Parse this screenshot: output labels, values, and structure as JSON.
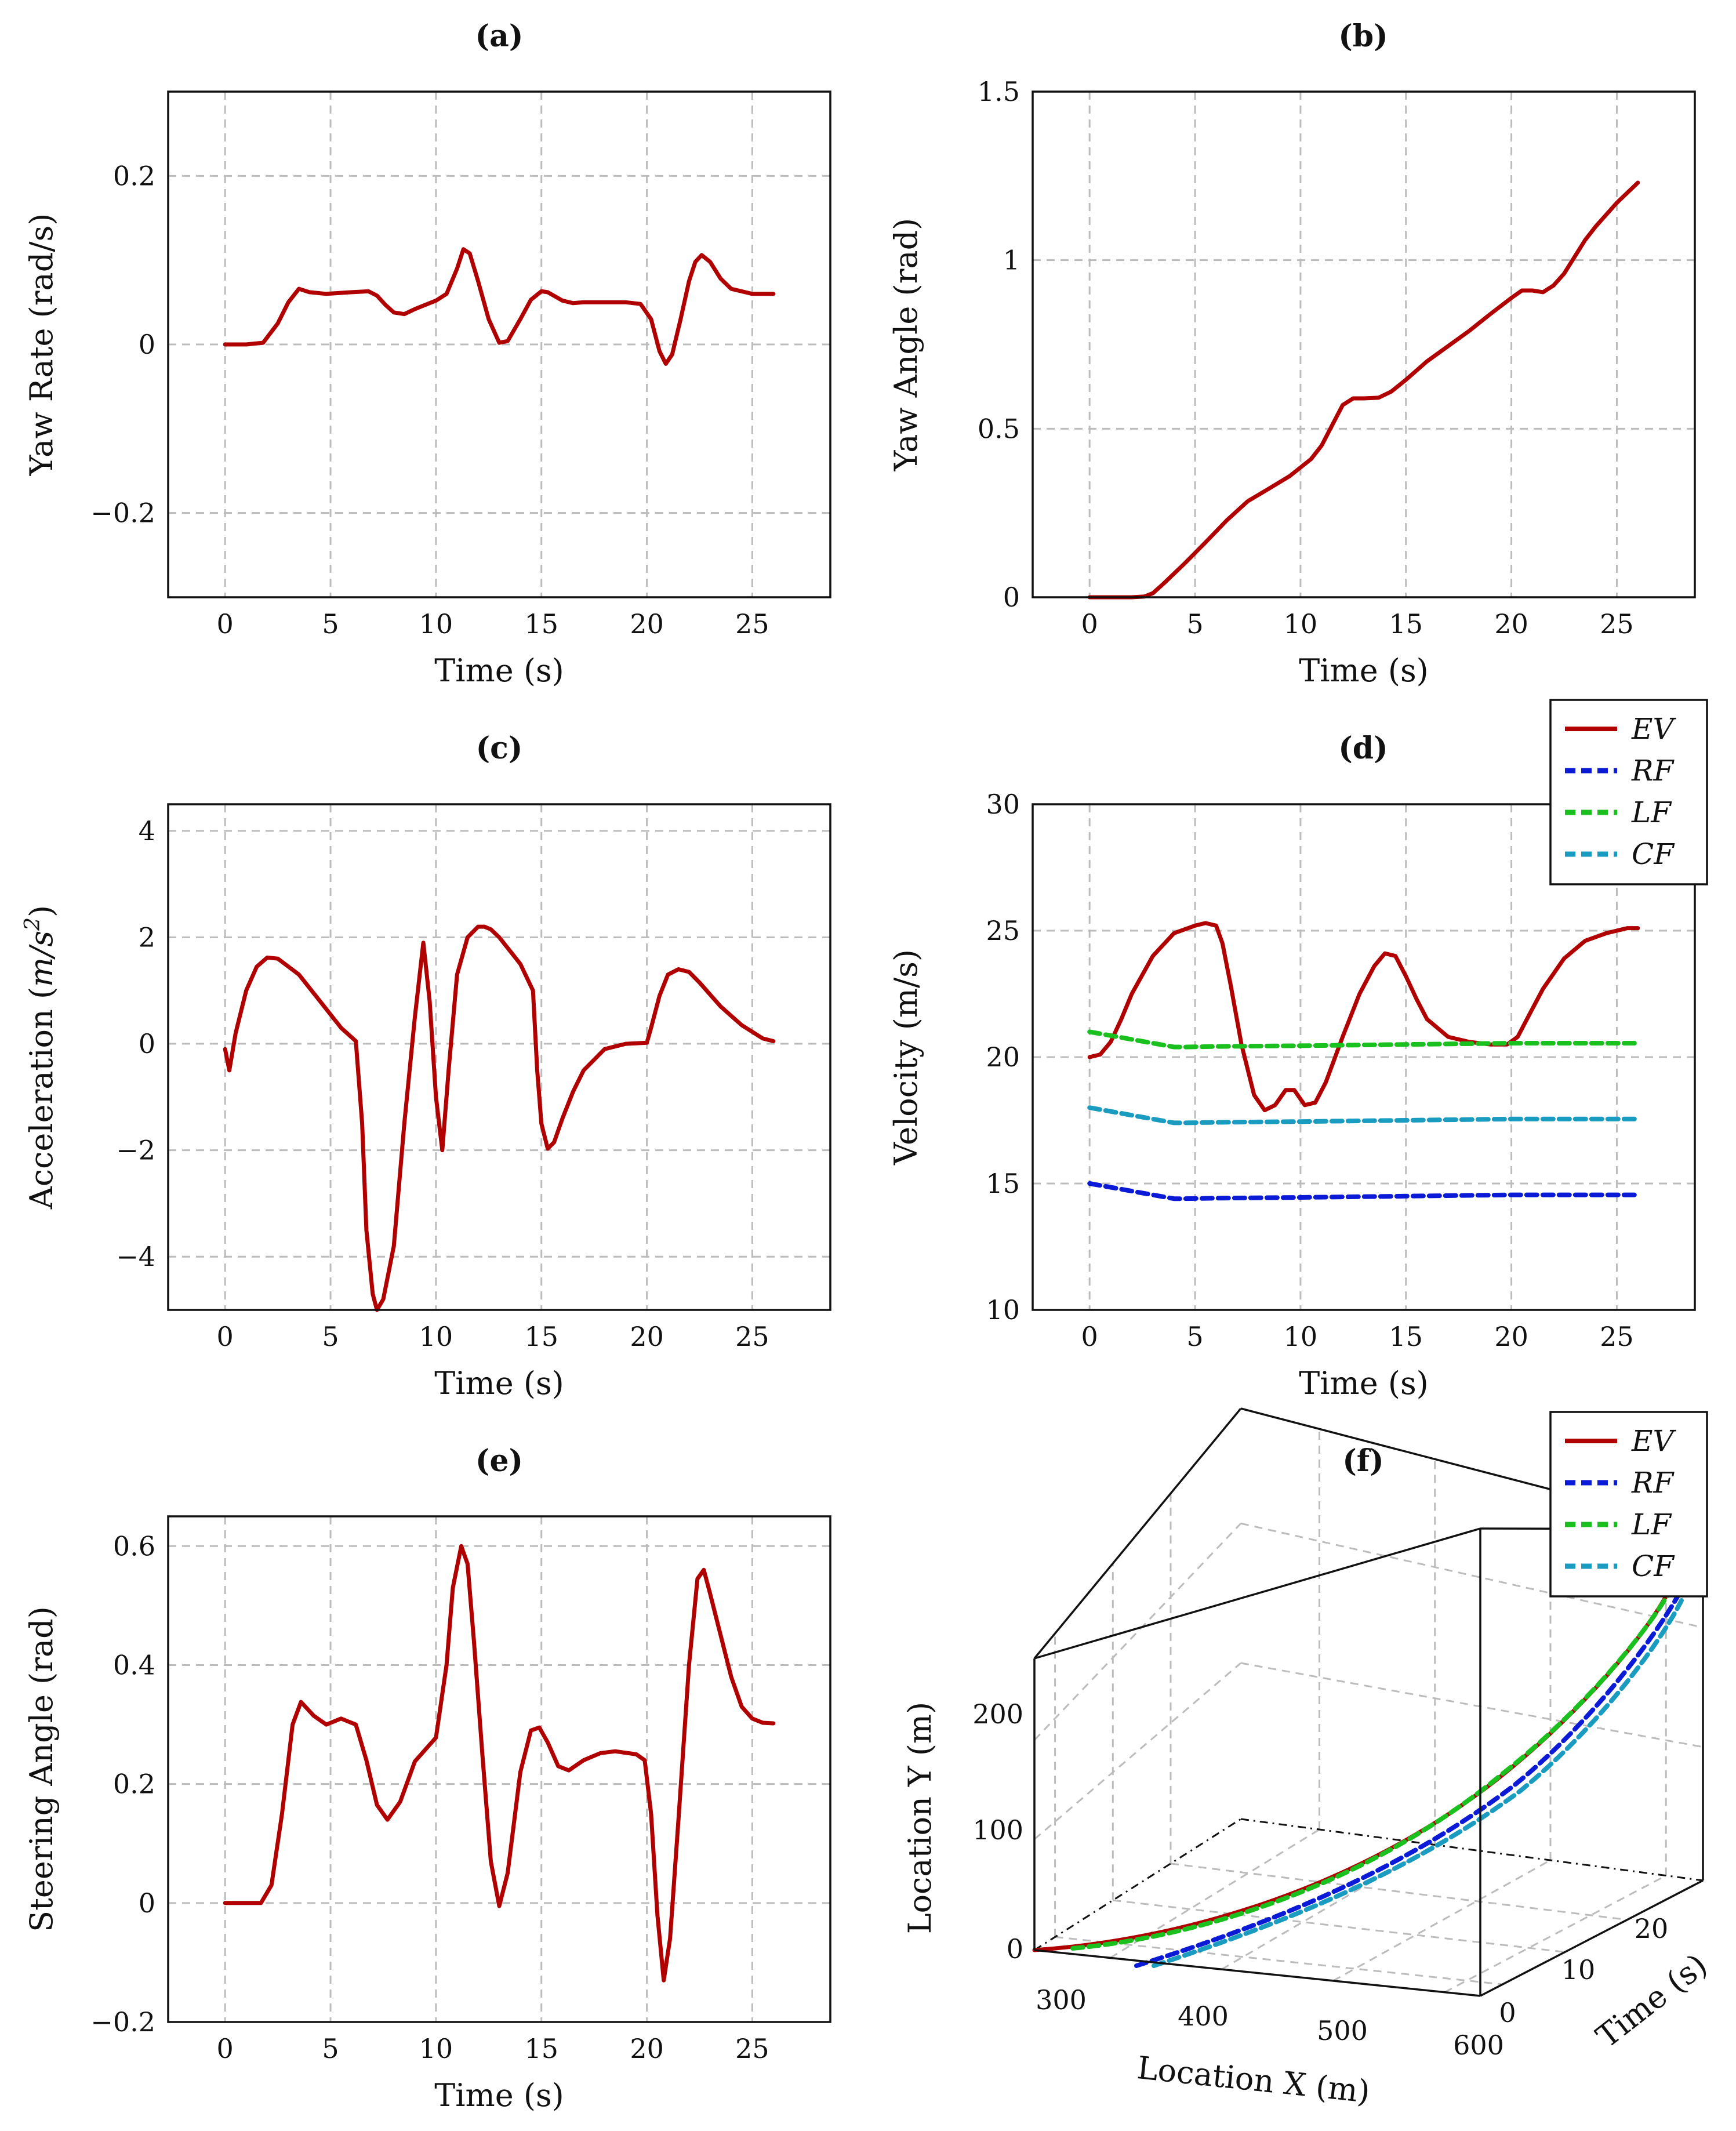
{
  "colors": {
    "EV": "#b00000",
    "RF": "#0a1ad6",
    "LF": "#19c01e",
    "CF": "#1a9bc0"
  },
  "chart_data": [
    {
      "id": "a",
      "type": "line",
      "title": "(a)",
      "xlabel": "Time (s)",
      "ylabel": "Yaw Rate (rad/s)",
      "xlim": [
        -2.7,
        28.7
      ],
      "ylim": [
        -0.3,
        0.3
      ],
      "xticks": [
        0,
        5,
        10,
        15,
        20,
        25
      ],
      "yticks": [
        {
          "v": -0.2,
          "t": "−0.2"
        },
        {
          "v": 0,
          "t": "0"
        },
        {
          "v": 0.2,
          "t": "0.2"
        }
      ],
      "series": [
        {
          "name": "EV",
          "color": "EV",
          "dash": false,
          "x": [
            0,
            1,
            1.8,
            2.5,
            3.0,
            3.5,
            4.0,
            4.8,
            6.0,
            6.8,
            7.2,
            7.6,
            8.0,
            8.5,
            9.0,
            10.0,
            10.5,
            11.0,
            11.3,
            11.6,
            12.0,
            12.5,
            13.0,
            13.4,
            14.0,
            14.5,
            15.0,
            15.3,
            16.0,
            16.5,
            17.0,
            18.0,
            19.0,
            19.7,
            20.2,
            20.6,
            20.9,
            21.2,
            21.6,
            22.0,
            22.3,
            22.6,
            23.0,
            23.5,
            24.0,
            25.0,
            26.0
          ],
          "y": [
            0,
            0,
            0.002,
            0.025,
            0.05,
            0.066,
            0.062,
            0.06,
            0.062,
            0.063,
            0.058,
            0.047,
            0.038,
            0.036,
            0.042,
            0.052,
            0.06,
            0.09,
            0.113,
            0.108,
            0.075,
            0.03,
            0.002,
            0.004,
            0.03,
            0.053,
            0.063,
            0.062,
            0.052,
            0.049,
            0.05,
            0.05,
            0.05,
            0.048,
            0.03,
            -0.008,
            -0.023,
            -0.012,
            0.03,
            0.075,
            0.098,
            0.106,
            0.098,
            0.078,
            0.066,
            0.06,
            0.06
          ]
        }
      ]
    },
    {
      "id": "b",
      "type": "line",
      "title": "(b)",
      "xlabel": "Time (s)",
      "ylabel": "Yaw Angle (rad)",
      "xlim": [
        -2.7,
        28.7
      ],
      "ylim": [
        0,
        1.5
      ],
      "xticks": [
        0,
        5,
        10,
        15,
        20,
        25
      ],
      "yticks": [
        {
          "v": 0,
          "t": "0"
        },
        {
          "v": 0.5,
          "t": "0.5"
        },
        {
          "v": 1,
          "t": "1"
        },
        {
          "v": 1.5,
          "t": "1.5"
        }
      ],
      "series": [
        {
          "name": "EV",
          "color": "EV",
          "dash": false,
          "x": [
            0,
            2.0,
            2.6,
            3.0,
            3.5,
            4.5,
            5.5,
            6.5,
            7.5,
            8.5,
            9.5,
            10.5,
            11.0,
            11.5,
            12.0,
            12.5,
            13.0,
            13.7,
            14.3,
            15.0,
            16.0,
            17.0,
            18.0,
            19.0,
            20.0,
            20.5,
            21.0,
            21.5,
            22.0,
            22.5,
            23.0,
            23.5,
            24.0,
            25.0,
            26.0
          ],
          "y": [
            0,
            0,
            0.002,
            0.012,
            0.04,
            0.1,
            0.163,
            0.228,
            0.285,
            0.322,
            0.36,
            0.41,
            0.45,
            0.51,
            0.57,
            0.59,
            0.59,
            0.592,
            0.61,
            0.645,
            0.7,
            0.745,
            0.79,
            0.84,
            0.888,
            0.91,
            0.91,
            0.905,
            0.925,
            0.96,
            1.01,
            1.06,
            1.1,
            1.17,
            1.23
          ]
        }
      ]
    },
    {
      "id": "c",
      "type": "line",
      "title": "(c)",
      "xlabel": "Time (s)",
      "ylabel": "Acceleration (m/s²)",
      "ylabel_parts": [
        "Acceleration (",
        "m/s",
        "2",
        ")"
      ],
      "xlim": [
        -2.7,
        28.7
      ],
      "ylim": [
        -5,
        4.5
      ],
      "xticks": [
        0,
        5,
        10,
        15,
        20,
        25
      ],
      "yticks": [
        {
          "v": -4,
          "t": "−4"
        },
        {
          "v": -2,
          "t": "−2"
        },
        {
          "v": 0,
          "t": "0"
        },
        {
          "v": 2,
          "t": "2"
        },
        {
          "v": 4,
          "t": "4"
        }
      ],
      "series": [
        {
          "name": "EV",
          "color": "EV",
          "dash": false,
          "x": [
            0,
            0.2,
            0.5,
            1.0,
            1.5,
            2.0,
            2.5,
            3.5,
            4.5,
            5.5,
            6.2,
            6.5,
            6.7,
            7.0,
            7.2,
            7.5,
            8.0,
            8.5,
            9.0,
            9.4,
            9.7,
            10.0,
            10.3,
            10.6,
            11.0,
            11.5,
            12.0,
            12.3,
            12.6,
            13.0,
            14.0,
            14.6,
            14.8,
            15.0,
            15.3,
            15.6,
            16.0,
            16.5,
            17.0,
            18.0,
            19.0,
            20.0,
            20.2,
            20.6,
            21.0,
            21.5,
            22.0,
            22.5,
            23.5,
            24.5,
            25.5,
            26.0
          ],
          "y": [
            -0.1,
            -0.5,
            0.2,
            1.0,
            1.45,
            1.62,
            1.6,
            1.3,
            0.8,
            0.3,
            0.05,
            -1.5,
            -3.5,
            -4.7,
            -5.0,
            -4.8,
            -3.8,
            -1.5,
            0.5,
            1.9,
            0.8,
            -1.0,
            -2.0,
            -0.5,
            1.3,
            2.0,
            2.2,
            2.2,
            2.15,
            2.0,
            1.5,
            1.0,
            -0.5,
            -1.5,
            -1.97,
            -1.85,
            -1.4,
            -0.9,
            -0.5,
            -0.1,
            0,
            0.02,
            0.3,
            0.9,
            1.3,
            1.4,
            1.35,
            1.15,
            0.7,
            0.35,
            0.1,
            0.05
          ]
        }
      ]
    },
    {
      "id": "d",
      "type": "line",
      "title": "(d)",
      "xlabel": "Time (s)",
      "ylabel": "Velocity (m/s)",
      "xlim": [
        -2.7,
        28.7
      ],
      "ylim": [
        10,
        30
      ],
      "xticks": [
        0,
        5,
        10,
        15,
        20,
        25
      ],
      "yticks": [
        {
          "v": 10,
          "t": "10"
        },
        {
          "v": 15,
          "t": "15"
        },
        {
          "v": 20,
          "t": "20"
        },
        {
          "v": 25,
          "t": "25"
        },
        {
          "v": 30,
          "t": "30"
        }
      ],
      "legend": [
        "EV",
        "RF",
        "LF",
        "CF"
      ],
      "series": [
        {
          "name": "EV",
          "color": "EV",
          "dash": false,
          "x": [
            0,
            0.5,
            1.0,
            1.5,
            2.0,
            3.0,
            4.0,
            5.0,
            5.5,
            6.0,
            6.3,
            6.7,
            7.2,
            7.8,
            8.3,
            8.8,
            9.3,
            9.7,
            10.2,
            10.7,
            11.2,
            12.0,
            12.8,
            13.5,
            14.0,
            14.5,
            15.0,
            15.5,
            16.0,
            17.0,
            18.0,
            19.0,
            19.8,
            20.3,
            20.8,
            21.5,
            22.5,
            23.5,
            24.5,
            25.5,
            26.0
          ],
          "y": [
            20.0,
            20.1,
            20.6,
            21.5,
            22.5,
            24.0,
            24.9,
            25.2,
            25.3,
            25.2,
            24.5,
            22.8,
            20.5,
            18.5,
            17.9,
            18.1,
            18.7,
            18.7,
            18.1,
            18.2,
            19.0,
            20.8,
            22.5,
            23.6,
            24.1,
            24.0,
            23.2,
            22.3,
            21.5,
            20.8,
            20.6,
            20.5,
            20.5,
            20.8,
            21.6,
            22.7,
            23.9,
            24.6,
            24.9,
            25.1,
            25.1
          ]
        },
        {
          "name": "RF",
          "color": "RF",
          "dash": true,
          "x": [
            0,
            1.0,
            2.0,
            3.0,
            4.0,
            4.5,
            6.0,
            10.0,
            15.0,
            20.0,
            26.0
          ],
          "y": [
            15.0,
            14.85,
            14.7,
            14.55,
            14.4,
            14.4,
            14.42,
            14.45,
            14.5,
            14.55,
            14.55
          ]
        },
        {
          "name": "LF",
          "color": "LF",
          "dash": true,
          "x": [
            0,
            1.0,
            2.0,
            3.0,
            4.0,
            4.5,
            6.0,
            10.0,
            15.0,
            20.0,
            26.0
          ],
          "y": [
            21.0,
            20.85,
            20.7,
            20.55,
            20.4,
            20.4,
            20.42,
            20.45,
            20.5,
            20.55,
            20.55
          ]
        },
        {
          "name": "CF",
          "color": "CF",
          "dash": true,
          "x": [
            0,
            1.0,
            2.0,
            3.0,
            4.0,
            4.5,
            6.0,
            10.0,
            15.0,
            20.0,
            26.0
          ],
          "y": [
            18.0,
            17.85,
            17.7,
            17.55,
            17.4,
            17.4,
            17.42,
            17.45,
            17.5,
            17.55,
            17.55
          ]
        }
      ]
    },
    {
      "id": "e",
      "type": "line",
      "title": "(e)",
      "xlabel": "Time (s)",
      "ylabel": "Steering Angle (rad)",
      "xlim": [
        -2.7,
        28.7
      ],
      "ylim": [
        -0.2,
        0.65
      ],
      "xticks": [
        0,
        5,
        10,
        15,
        20,
        25
      ],
      "yticks": [
        {
          "v": -0.2,
          "t": "−0.2"
        },
        {
          "v": 0,
          "t": "0"
        },
        {
          "v": 0.2,
          "t": "0.2"
        },
        {
          "v": 0.4,
          "t": "0.4"
        },
        {
          "v": 0.6,
          "t": "0.6"
        }
      ],
      "series": [
        {
          "name": "EV",
          "color": "EV",
          "dash": false,
          "x": [
            0,
            1.7,
            2.2,
            2.7,
            3.2,
            3.6,
            4.2,
            4.8,
            5.5,
            6.2,
            6.7,
            7.2,
            7.7,
            8.3,
            9.0,
            9.5,
            10.0,
            10.5,
            10.8,
            11.2,
            11.5,
            11.8,
            12.2,
            12.6,
            13.0,
            13.4,
            14.0,
            14.5,
            14.9,
            15.3,
            15.8,
            16.3,
            17.0,
            17.8,
            18.5,
            19.5,
            19.9,
            20.2,
            20.5,
            20.8,
            21.1,
            21.5,
            22.0,
            22.4,
            22.7,
            23.0,
            23.5,
            24.0,
            24.5,
            25.0,
            25.5,
            26.0
          ],
          "y": [
            0,
            0,
            0.03,
            0.15,
            0.3,
            0.338,
            0.315,
            0.3,
            0.31,
            0.3,
            0.24,
            0.165,
            0.14,
            0.17,
            0.238,
            0.258,
            0.278,
            0.4,
            0.53,
            0.6,
            0.57,
            0.44,
            0.25,
            0.07,
            -0.005,
            0.05,
            0.22,
            0.29,
            0.295,
            0.27,
            0.23,
            0.223,
            0.24,
            0.252,
            0.255,
            0.25,
            0.24,
            0.15,
            -0.02,
            -0.13,
            -0.06,
            0.14,
            0.4,
            0.545,
            0.56,
            0.52,
            0.45,
            0.38,
            0.33,
            0.31,
            0.303,
            0.302
          ]
        }
      ]
    },
    {
      "id": "f",
      "type": "line3d",
      "title": "(f)",
      "xlabel": "Location X (m)",
      "ylabel": "Location Y (m)",
      "zlabel": "Time (s)",
      "xticks": [
        "300",
        "400",
        "500",
        "600"
      ],
      "yticks": [
        "0",
        "100",
        "200"
      ],
      "tticks": [
        "0",
        "10",
        "20"
      ],
      "legend": [
        "EV",
        "RF",
        "LF",
        "CF"
      ],
      "series": [
        {
          "name": "EV",
          "color": "EV",
          "dash": false
        },
        {
          "name": "RF",
          "color": "RF",
          "dash": true
        },
        {
          "name": "LF",
          "color": "LF",
          "dash": true
        },
        {
          "name": "CF",
          "color": "CF",
          "dash": true
        }
      ]
    }
  ]
}
